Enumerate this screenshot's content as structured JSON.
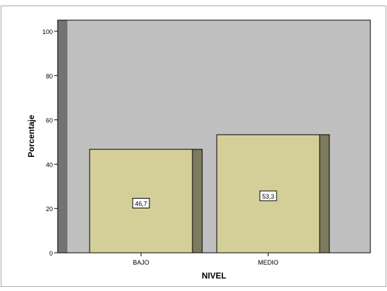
{
  "chart_data": {
    "type": "bar",
    "title": "",
    "xlabel": "NIVEL",
    "ylabel": "Porcentaje",
    "categories": [
      "BAJO",
      "MEDIO"
    ],
    "values": [
      46.7,
      53.3
    ],
    "data_labels": [
      "46,7",
      "53,3"
    ],
    "ylim": [
      0,
      105
    ],
    "yticks": [
      0,
      20,
      40,
      60,
      80,
      100
    ],
    "ytick_labels": [
      "0",
      "20",
      "40",
      "60",
      "80",
      "100"
    ],
    "grid": false,
    "legend": "none",
    "style": "3d"
  },
  "colors": {
    "plot_background": "#c0c0c0",
    "bar_face": "#d4cf98",
    "bar_side": "#7d7b5b",
    "back_wall_side": "#737373",
    "frame": "#a9a9a9"
  }
}
